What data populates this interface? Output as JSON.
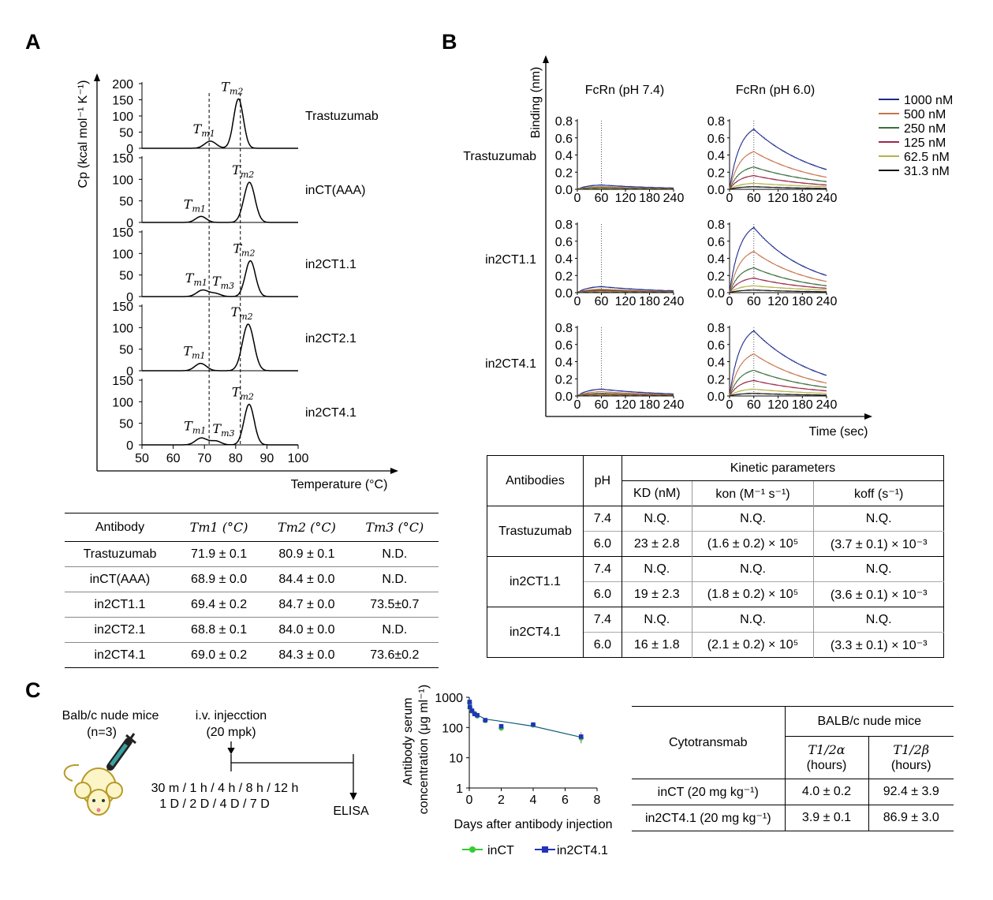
{
  "panels": {
    "A": "A",
    "B": "B",
    "C": "C"
  },
  "colors": {
    "1000 nM": "#1f2a8c",
    "500 nM": "#c8734a",
    "250 nM": "#3c6e3c",
    "125 nM": "#9a2a4a",
    "62.5 nM": "#b5b24a",
    "31.3 nM": "#111111",
    "inCT": "#33cc33",
    "in2CT4.1": "#2233bb"
  },
  "chart_data": [
    {
      "type": "line",
      "panel": "A",
      "ylabel": "Cp (kcal mol⁻¹ K⁻¹)",
      "xlabel": "Temperature (°C)",
      "xlim": [
        50,
        100
      ],
      "xticks": [
        "50",
        "60",
        "70",
        "80",
        "90",
        "100"
      ],
      "reference_lines_x": [
        71.5,
        81.5
      ],
      "series": [
        {
          "name": "Trastuzumab",
          "yticks": [
            "200",
            "150",
            "100",
            "50",
            "0"
          ],
          "ymax": 200,
          "peaks": [
            {
              "label": "Tm1",
              "x": 71.9,
              "y": 22,
              "w": 2.6
            },
            {
              "label": "Tm2",
              "x": 80.9,
              "y": 153,
              "w": 2.2
            }
          ]
        },
        {
          "name": "inCT(AAA)",
          "yticks": [
            "150",
            "100",
            "50",
            "0"
          ],
          "ymax": 150,
          "peaks": [
            {
              "label": "Tm1",
              "x": 68.9,
              "y": 14,
              "w": 2.4
            },
            {
              "label": "Tm2",
              "x": 84.4,
              "y": 93,
              "w": 2.5
            }
          ]
        },
        {
          "name": "in2CT1.1",
          "yticks": [
            "150",
            "100",
            "50",
            "0"
          ],
          "ymax": 150,
          "peaks": [
            {
              "label": "Tm1",
              "x": 69.4,
              "y": 15,
              "w": 2.6
            },
            {
              "label": "Tm3",
              "x": 73.5,
              "y": 7,
              "w": 2.4
            },
            {
              "label": "Tm2",
              "x": 84.7,
              "y": 83,
              "w": 2.3
            }
          ]
        },
        {
          "name": "in2CT2.1",
          "yticks": [
            "150",
            "100",
            "50",
            "0"
          ],
          "ymax": 150,
          "peaks": [
            {
              "label": "Tm1",
              "x": 68.8,
              "y": 17,
              "w": 2.6
            },
            {
              "label": "Tm2",
              "x": 84.0,
              "y": 108,
              "w": 2.6
            }
          ]
        },
        {
          "name": "in2CT4.1",
          "yticks": [
            "150",
            "100",
            "50",
            "0"
          ],
          "ymax": 150,
          "peaks": [
            {
              "label": "Tm1",
              "x": 69.0,
              "y": 16,
              "w": 2.6
            },
            {
              "label": "Tm3",
              "x": 73.6,
              "y": 9,
              "w": 2.4
            },
            {
              "label": "Tm2",
              "x": 84.3,
              "y": 94,
              "w": 2.3
            }
          ]
        }
      ]
    },
    {
      "type": "line",
      "panel": "B",
      "ylabel": "Binding (nm)",
      "xlabel": "Time (sec)",
      "columns": [
        "FcRn (pH 7.4)",
        "FcRn (pH 6.0)"
      ],
      "rows": [
        "Trastuzumab",
        "in2CT1.1",
        "in2CT4.1"
      ],
      "xlim": [
        0,
        240
      ],
      "xticks": [
        "0",
        "60",
        "120",
        "180",
        "240"
      ],
      "ylim": [
        0,
        0.8
      ],
      "yticks": [
        "0.8",
        "0.6",
        "0.4",
        "0.2",
        "0.0"
      ],
      "legend": [
        "1000 nM",
        "500 nM",
        "250 nM",
        "125 nM",
        "62.5 nM",
        "31.3 nM"
      ],
      "peak_at_60s_pH6": {
        "Trastuzumab": [
          0.7,
          0.44,
          0.26,
          0.16,
          0.07,
          0.03
        ],
        "in2CT1.1": [
          0.76,
          0.48,
          0.29,
          0.17,
          0.08,
          0.03
        ],
        "in2CT4.1": [
          0.76,
          0.49,
          0.3,
          0.18,
          0.08,
          0.03
        ]
      },
      "peak_at_60s_pH74": {
        "Trastuzumab": [
          0.05,
          0.03,
          0.02,
          0.01,
          0.01,
          0.0
        ],
        "in2CT1.1": [
          0.07,
          0.04,
          0.03,
          0.02,
          0.01,
          0.0
        ],
        "in2CT4.1": [
          0.08,
          0.05,
          0.03,
          0.02,
          0.01,
          0.0
        ]
      },
      "end_at_240s_pH6": {
        "Trastuzumab": [
          0.23,
          0.14,
          0.09,
          0.05,
          0.03,
          0.01
        ],
        "in2CT1.1": [
          0.2,
          0.13,
          0.08,
          0.05,
          0.03,
          0.01
        ],
        "in2CT4.1": [
          0.24,
          0.15,
          0.1,
          0.06,
          0.03,
          0.01
        ]
      }
    },
    {
      "type": "scatter",
      "panel": "C",
      "ylabel": "Antibody serum concentration (μg ml⁻¹)",
      "xlabel": "Days after antibody injection",
      "xlim": [
        0,
        8
      ],
      "xticks": [
        "0",
        "2",
        "4",
        "6",
        "8"
      ],
      "ylim": [
        1,
        1000
      ],
      "yscale": "log",
      "yticks": [
        "1000",
        "100",
        "10",
        "1"
      ],
      "series": [
        {
          "name": "inCT",
          "x": [
            0.02,
            0.04,
            0.17,
            0.33,
            0.5,
            1,
            2,
            4,
            7
          ],
          "y": [
            650,
            450,
            350,
            290,
            240,
            170,
            95,
            120,
            45
          ],
          "err": [
            0,
            0,
            0,
            0,
            0,
            20,
            10,
            20,
            15
          ]
        },
        {
          "name": "in2CT4.1",
          "x": [
            0.02,
            0.04,
            0.17,
            0.33,
            0.5,
            1,
            2,
            4,
            7
          ],
          "y": [
            700,
            480,
            360,
            280,
            255,
            175,
            110,
            125,
            50
          ],
          "err": [
            0,
            0,
            0,
            0,
            0,
            15,
            10,
            15,
            20
          ]
        }
      ],
      "fit": {
        "x": [
          0,
          0.2,
          0.5,
          1,
          2,
          4,
          7
        ],
        "y": [
          620,
          380,
          260,
          190,
          160,
          110,
          48
        ]
      }
    }
  ],
  "tableA": {
    "headers": [
      "Antibody",
      "Tm1 (°C)",
      "Tm2 (°C)",
      "Tm3 (°C)"
    ],
    "rows": [
      [
        "Trastuzumab",
        "71.9 ± 0.1",
        "80.9 ± 0.1",
        "N.D."
      ],
      [
        "inCT(AAA)",
        "68.9 ± 0.0",
        "84.4 ± 0.0",
        "N.D."
      ],
      [
        "in2CT1.1",
        "69.4 ± 0.2",
        "84.7 ± 0.0",
        "73.5±0.7"
      ],
      [
        "in2CT2.1",
        "68.8 ± 0.1",
        "84.0 ± 0.0",
        "N.D."
      ],
      [
        "in2CT4.1",
        "69.0 ± 0.2",
        "84.3 ± 0.0",
        "73.6±0.2"
      ]
    ]
  },
  "tableB": {
    "h_antibodies": "Antibodies",
    "h_ph": "pH",
    "h_kinetic": "Kinetic parameters",
    "h_kd": "KD (nM)",
    "h_kon": "kon (M⁻¹ s⁻¹)",
    "h_koff": "koff (s⁻¹)",
    "groups": [
      {
        "name": "Trastuzumab",
        "rows": [
          [
            "7.4",
            "N.Q.",
            "N.Q.",
            "N.Q."
          ],
          [
            "6.0",
            "23 ± 2.8",
            "(1.6 ± 0.2) × 10⁵",
            "(3.7 ± 0.1) × 10⁻³"
          ]
        ]
      },
      {
        "name": "in2CT1.1",
        "rows": [
          [
            "7.4",
            "N.Q.",
            "N.Q.",
            "N.Q."
          ],
          [
            "6.0",
            "19 ± 2.3",
            "(1.8 ± 0.2) × 10⁵",
            "(3.6 ± 0.1) × 10⁻³"
          ]
        ]
      },
      {
        "name": "in2CT4.1",
        "rows": [
          [
            "7.4",
            "N.Q.",
            "N.Q.",
            "N.Q."
          ],
          [
            "6.0",
            "16 ± 1.8",
            "(2.1 ± 0.2) × 10⁵",
            "(3.3 ± 0.1) × 10⁻³"
          ]
        ]
      }
    ]
  },
  "tableC": {
    "h_cytotransmab": "Cytotransmab",
    "h_group": "BALB/c nude mice",
    "h_alpha": "T1/2α",
    "h_beta": "T1/2β",
    "h_unit": "(hours)",
    "rows": [
      [
        "inCT (20 mg kg⁻¹)",
        "4.0 ± 0.2",
        "92.4 ± 3.9"
      ],
      [
        "in2CT4.1 (20 mg kg⁻¹)",
        "3.9 ± 0.1",
        "86.9 ± 3.0"
      ]
    ]
  },
  "scheme": {
    "mice": "Balb/c nude mice",
    "n": "(n=3)",
    "injection": "i.v. injecction",
    "dose": "(20 mpk)",
    "times1": "30 m / 1 h / 4 h / 8 h / 12 h",
    "times2": "1 D / 2 D / 4 D / 7 D",
    "assay": "ELISA"
  }
}
